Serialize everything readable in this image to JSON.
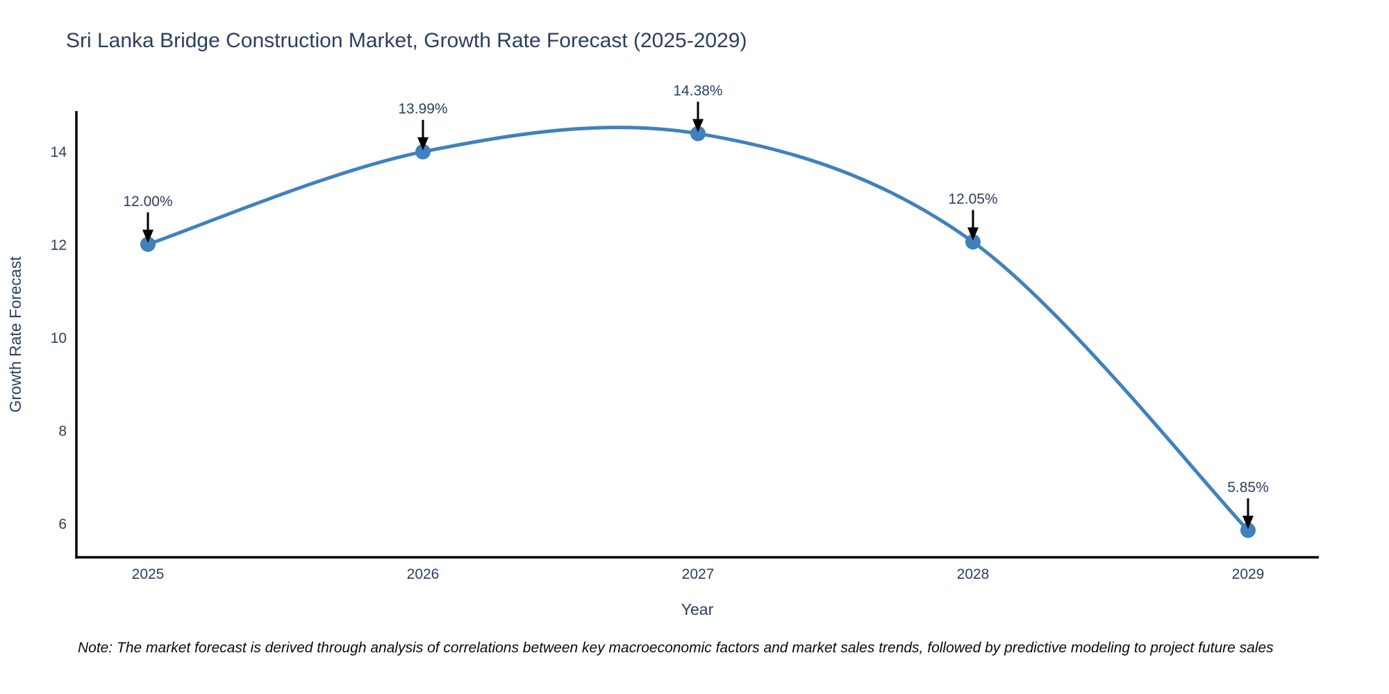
{
  "note": "Note: The market forecast is derived through analysis of correlations between key macroeconomic factors and market sales trends, followed by predictive modeling to project future sales",
  "chart_data": {
    "type": "line",
    "title": "Sri Lanka Bridge Construction Market, Growth Rate Forecast (2025-2029)",
    "xlabel": "Year",
    "ylabel": "Growth Rate Forecast",
    "x": [
      2025,
      2026,
      2027,
      2028,
      2029
    ],
    "series": [
      {
        "name": "Growth Rate Forecast",
        "values": [
          12.0,
          13.99,
          14.38,
          12.05,
          5.85
        ]
      }
    ],
    "point_labels": [
      "12.00%",
      "13.99%",
      "14.38%",
      "12.05%",
      "5.85%"
    ],
    "xticks": [
      2025,
      2026,
      2027,
      2028,
      2029
    ],
    "yticks": [
      6,
      8,
      10,
      12,
      14
    ],
    "ylim": [
      5.27,
      14.87
    ],
    "xlim": [
      2024.73,
      2029.26
    ],
    "grid": false,
    "legend": "none",
    "line_shape": "spline",
    "colors": {
      "line": "#3f81bd",
      "marker": "#3f81bd",
      "axis": "#000000",
      "text": "#2a3f5f",
      "annotation_arrow": "#000000",
      "background": "#ffffff"
    }
  }
}
